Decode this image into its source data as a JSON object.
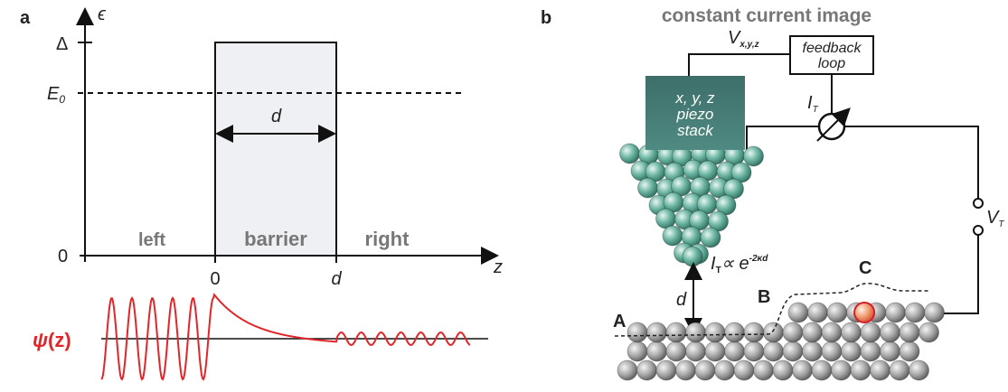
{
  "panel_a": {
    "label": "a",
    "y_axis_label": "ϵ",
    "barrier_height_label": "Δ",
    "energy_label": {
      "symbol": "E",
      "subscript": "0"
    },
    "y_origin_label": "0",
    "width_label": "d",
    "regions": [
      "left",
      "barrier",
      "right"
    ],
    "x_ticks": [
      "0",
      "d"
    ],
    "x_axis_label": "z",
    "wavefunction_label": {
      "symbol": "ψ",
      "argument": "(z)"
    }
  },
  "panel_b": {
    "label": "b",
    "title": "constant current image",
    "voltage_xyz": {
      "symbol": "V",
      "subscript": "x,y,z"
    },
    "feedback": [
      "feedback",
      "loop"
    ],
    "piezo": [
      "x, y, z",
      "piezo",
      "stack"
    ],
    "current": {
      "symbol": "I",
      "subscript": "T"
    },
    "bias": {
      "symbol": "V",
      "subscript": "T"
    },
    "formula": {
      "symbol": "I",
      "subscript": "T",
      "relation": "∝ e",
      "exponent": "-2κd"
    },
    "distance_label": "d",
    "sites": [
      "A",
      "B",
      "C"
    ]
  }
}
